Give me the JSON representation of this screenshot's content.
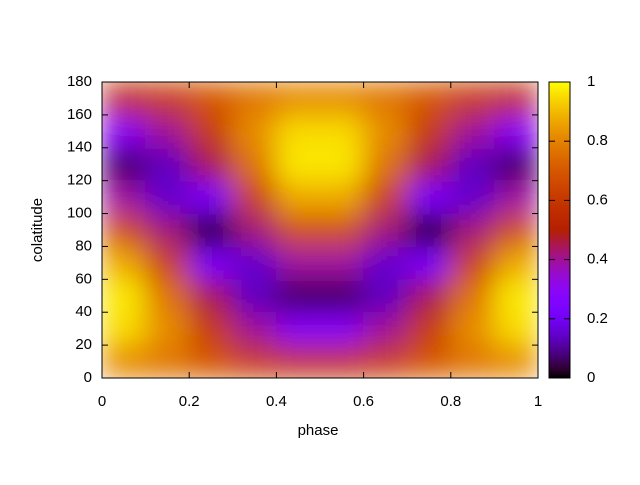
{
  "chart_data": {
    "type": "heatmap",
    "xlabel": "phase",
    "ylabel": "colatitude",
    "x": [
      0.05,
      0.15,
      0.25,
      0.35,
      0.45,
      0.55,
      0.65,
      0.75,
      0.85,
      0.95
    ],
    "y": [
      10,
      30,
      50,
      70,
      90,
      110,
      130,
      150,
      170
    ],
    "values": [
      [
        0.81,
        0.77,
        0.7,
        0.62,
        0.58,
        0.58,
        0.62,
        0.7,
        0.77,
        0.81
      ],
      [
        0.95,
        0.82,
        0.61,
        0.4,
        0.28,
        0.28,
        0.4,
        0.61,
        0.82,
        0.95
      ],
      [
        0.97,
        0.77,
        0.45,
        0.14,
        0.06,
        0.06,
        0.14,
        0.45,
        0.77,
        0.97
      ],
      [
        0.87,
        0.63,
        0.24,
        0.15,
        0.39,
        0.39,
        0.15,
        0.24,
        0.63,
        0.87
      ],
      [
        0.67,
        0.42,
        0,
        0.42,
        0.67,
        0.67,
        0.42,
        0,
        0.42,
        0.67
      ],
      [
        0.39,
        0.15,
        0.24,
        0.63,
        0.87,
        0.87,
        0.63,
        0.24,
        0.15,
        0.39
      ],
      [
        0.06,
        0.14,
        0.45,
        0.77,
        0.97,
        0.97,
        0.77,
        0.45,
        0.14,
        0.06
      ],
      [
        0.28,
        0.4,
        0.61,
        0.82,
        0.95,
        0.95,
        0.82,
        0.61,
        0.4,
        0.28
      ],
      [
        0.58,
        0.62,
        0.7,
        0.77,
        0.81,
        0.81,
        0.77,
        0.7,
        0.62,
        0.58
      ]
    ],
    "xlim": [
      0,
      1
    ],
    "xticks": [
      0,
      0.2,
      0.4,
      0.6,
      0.8,
      1
    ],
    "ylim": [
      0,
      180
    ],
    "yticks": [
      0,
      20,
      40,
      60,
      80,
      100,
      120,
      140,
      160,
      180
    ],
    "clim": [
      0,
      1
    ],
    "cticks": [
      0,
      0.2,
      0.4,
      0.6,
      0.8,
      1
    ],
    "palette": "gnuplot"
  }
}
